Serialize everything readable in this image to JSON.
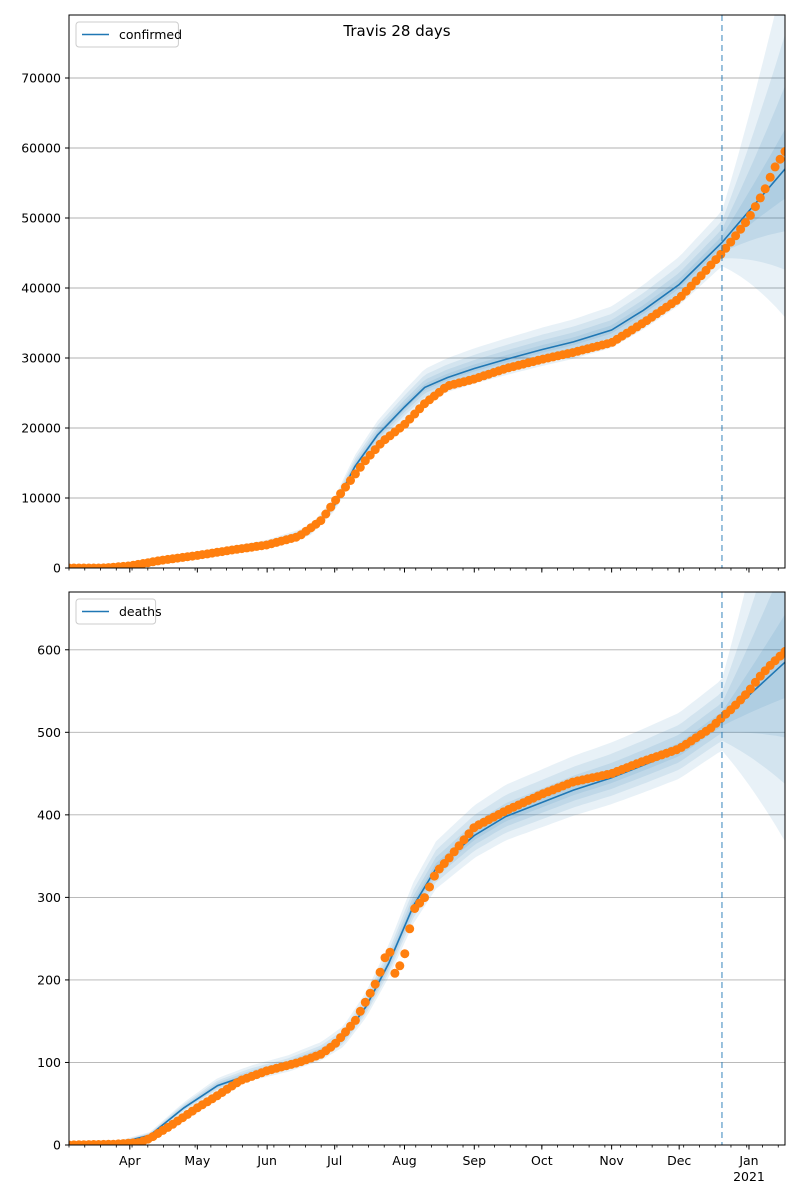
{
  "figure": {
    "title": "Travis 28 days",
    "colors": {
      "model_line": "#1f77b4",
      "observed_points": "#ff7f0e",
      "band": "#1f77b4",
      "forecast_marker": "#1f77b4",
      "grid": "#b0b0b0"
    }
  },
  "chart_data": [
    {
      "type": "line",
      "legend": [
        "confirmed"
      ],
      "legend_position": "top-left",
      "grid": "horizontal",
      "xlabel": "",
      "ylabel": "",
      "x_ticks": [
        "Apr",
        "May",
        "Jun",
        "Jul",
        "Aug",
        "Sep",
        "Oct",
        "Nov",
        "Dec",
        "Jan\n2021"
      ],
      "x_tick_dates": [
        "2020-04-01",
        "2020-05-01",
        "2020-06-01",
        "2020-07-01",
        "2020-08-01",
        "2020-09-01",
        "2020-10-01",
        "2020-11-01",
        "2020-12-01",
        "2021-01-01"
      ],
      "xlim": [
        "2020-03-05",
        "2021-01-17"
      ],
      "ylim": [
        0,
        79000
      ],
      "y_ticks": [
        0,
        10000,
        20000,
        30000,
        40000,
        50000,
        60000,
        70000
      ],
      "forecast_start": "2020-12-20",
      "series": [
        {
          "name": "confirmed",
          "style": "line",
          "x": [
            "2020-03-05",
            "2020-04-01",
            "2020-05-01",
            "2020-06-01",
            "2020-06-20",
            "2020-07-01",
            "2020-07-10",
            "2020-07-20",
            "2020-08-01",
            "2020-08-10",
            "2020-08-20",
            "2020-09-01",
            "2020-09-15",
            "2020-10-01",
            "2020-10-15",
            "2020-11-01",
            "2020-11-15",
            "2020-12-01",
            "2020-12-20",
            "2021-01-01",
            "2021-01-17"
          ],
          "y": [
            0,
            200,
            1800,
            3400,
            5200,
            9000,
            14500,
            19000,
            23000,
            25800,
            27200,
            28500,
            29800,
            31200,
            32300,
            34000,
            36800,
            40500,
            46500,
            51000,
            57000
          ]
        },
        {
          "name": "observed",
          "style": "scatter",
          "x": [
            "2020-03-05",
            "2020-03-20",
            "2020-04-01",
            "2020-04-15",
            "2020-05-01",
            "2020-05-15",
            "2020-06-01",
            "2020-06-15",
            "2020-06-25",
            "2020-07-01",
            "2020-07-08",
            "2020-07-15",
            "2020-07-22",
            "2020-08-01",
            "2020-08-10",
            "2020-08-20",
            "2020-09-01",
            "2020-09-15",
            "2020-10-01",
            "2020-10-15",
            "2020-11-01",
            "2020-11-15",
            "2020-12-01",
            "2020-12-10",
            "2020-12-20",
            "2020-12-25",
            "2021-01-01",
            "2021-01-08",
            "2021-01-12",
            "2021-01-17"
          ],
          "y": [
            0,
            0,
            300,
            1100,
            1800,
            2500,
            3300,
            4500,
            6800,
            9500,
            12500,
            15500,
            18000,
            20500,
            23500,
            26000,
            27000,
            28500,
            29800,
            30800,
            32200,
            35000,
            38500,
            41500,
            45000,
            47000,
            50000,
            54000,
            57000,
            59500
          ]
        }
      ]
    },
    {
      "type": "line",
      "legend": [
        "deaths"
      ],
      "legend_position": "top-left",
      "grid": "horizontal",
      "xlabel": "",
      "ylabel": "",
      "x_ticks": [
        "Apr",
        "May",
        "Jun",
        "Jul",
        "Aug",
        "Sep",
        "Oct",
        "Nov",
        "Dec",
        "Jan\n2021"
      ],
      "x_tick_dates": [
        "2020-04-01",
        "2020-05-01",
        "2020-06-01",
        "2020-07-01",
        "2020-08-01",
        "2020-09-01",
        "2020-10-01",
        "2020-11-01",
        "2020-12-01",
        "2021-01-01"
      ],
      "xlim": [
        "2020-03-05",
        "2021-01-17"
      ],
      "ylim": [
        0,
        670
      ],
      "y_ticks": [
        0,
        100,
        200,
        300,
        400,
        500,
        600
      ],
      "forecast_start": "2020-12-20",
      "series": [
        {
          "name": "deaths",
          "style": "line",
          "x": [
            "2020-03-05",
            "2020-03-25",
            "2020-04-10",
            "2020-04-25",
            "2020-05-10",
            "2020-05-25",
            "2020-06-10",
            "2020-06-25",
            "2020-07-05",
            "2020-07-15",
            "2020-07-25",
            "2020-08-05",
            "2020-08-15",
            "2020-09-01",
            "2020-09-15",
            "2020-10-01",
            "2020-10-15",
            "2020-11-01",
            "2020-11-15",
            "2020-12-01",
            "2020-12-20",
            "2021-01-01",
            "2021-01-17"
          ],
          "y": [
            0,
            1,
            12,
            45,
            72,
            86,
            97,
            112,
            130,
            168,
            220,
            290,
            335,
            375,
            398,
            415,
            430,
            445,
            460,
            478,
            515,
            545,
            585
          ]
        },
        {
          "name": "observed",
          "style": "scatter",
          "x": [
            "2020-03-05",
            "2020-03-25",
            "2020-04-05",
            "2020-04-10",
            "2020-04-20",
            "2020-05-01",
            "2020-05-10",
            "2020-05-20",
            "2020-06-01",
            "2020-06-15",
            "2020-06-25",
            "2020-07-01",
            "2020-07-10",
            "2020-07-20",
            "2020-07-25",
            "2020-07-28",
            "2020-08-01",
            "2020-08-05",
            "2020-08-10",
            "2020-08-15",
            "2020-08-20",
            "2020-09-01",
            "2020-09-15",
            "2020-10-01",
            "2020-10-15",
            "2020-11-01",
            "2020-11-15",
            "2020-12-01",
            "2020-12-15",
            "2020-12-20",
            "2020-12-25",
            "2021-01-01",
            "2021-01-05",
            "2021-01-10",
            "2021-01-17"
          ],
          "y": [
            0,
            1,
            3,
            8,
            25,
            45,
            60,
            78,
            90,
            100,
            110,
            122,
            150,
            200,
            240,
            205,
            230,
            285,
            300,
            330,
            345,
            385,
            405,
            425,
            440,
            450,
            465,
            480,
            505,
            518,
            530,
            550,
            565,
            580,
            598
          ]
        }
      ]
    }
  ]
}
